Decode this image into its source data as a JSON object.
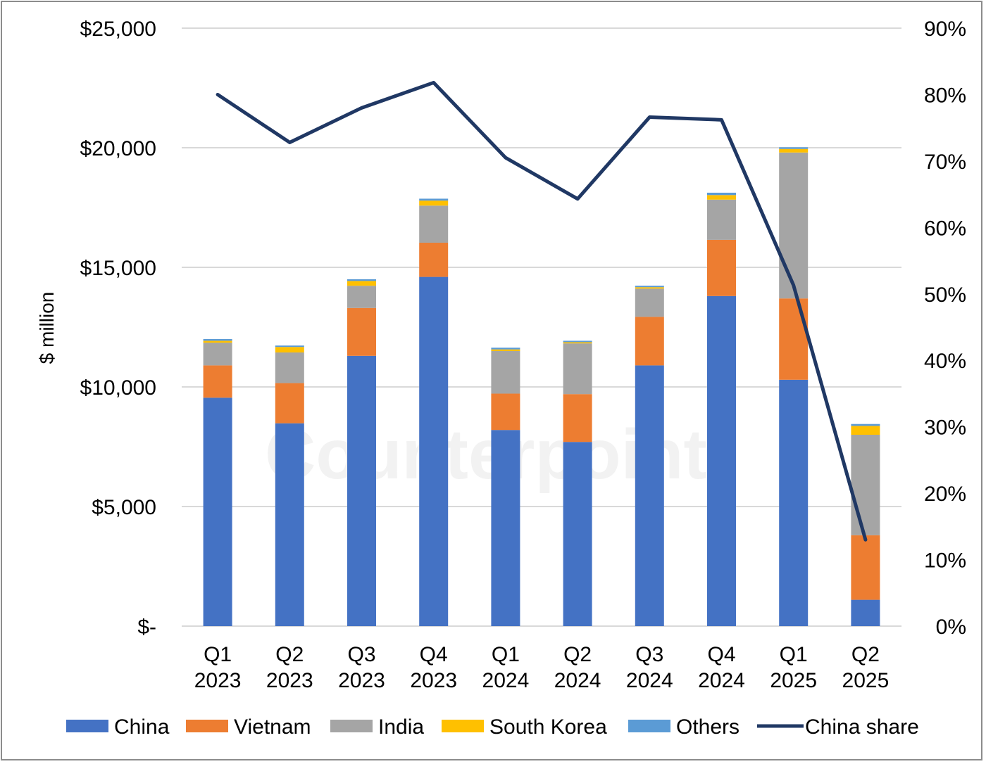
{
  "watermark": "Counterpoint",
  "chart_data": {
    "type": "bar",
    "stacked": true,
    "categories": [
      [
        "Q1",
        "2023"
      ],
      [
        "Q2",
        "2023"
      ],
      [
        "Q3",
        "2023"
      ],
      [
        "Q4",
        "2023"
      ],
      [
        "Q1",
        "2024"
      ],
      [
        "Q2",
        "2024"
      ],
      [
        "Q3",
        "2024"
      ],
      [
        "Q4",
        "2024"
      ],
      [
        "Q1",
        "2025"
      ],
      [
        "Q2",
        "2025"
      ]
    ],
    "ylabel": "$ million",
    "ylim": [
      0,
      25000
    ],
    "y_ticks": [
      "$-",
      "$5,000",
      "$10,000",
      "$15,000",
      "$20,000",
      "$25,000"
    ],
    "y2lim": [
      0,
      90
    ],
    "y2_ticks": [
      "0%",
      "10%",
      "20%",
      "30%",
      "40%",
      "50%",
      "60%",
      "70%",
      "80%",
      "90%"
    ],
    "grid": true,
    "legend_position": "bottom",
    "series": [
      {
        "name": "China",
        "color": "#4472C4",
        "values": [
          9550,
          8480,
          11300,
          14600,
          8200,
          7700,
          10900,
          13800,
          10300,
          1100
        ]
      },
      {
        "name": "Vietnam",
        "color": "#ED7D31",
        "values": [
          1350,
          1680,
          2000,
          1430,
          1520,
          2000,
          2030,
          2350,
          3400,
          2700
        ]
      },
      {
        "name": "India",
        "color": "#A5A5A5",
        "values": [
          950,
          1280,
          930,
          1550,
          1780,
          2120,
          1180,
          1680,
          6100,
          4200
        ]
      },
      {
        "name": "South Korea",
        "color": "#FFC000",
        "values": [
          80,
          230,
          200,
          210,
          70,
          50,
          60,
          190,
          150,
          370
        ]
      },
      {
        "name": "Others",
        "color": "#5B9BD5",
        "values": [
          70,
          60,
          70,
          80,
          70,
          60,
          60,
          100,
          70,
          80
        ]
      }
    ],
    "line_series": {
      "name": "China share",
      "color": "#203864",
      "axis": "right",
      "values": [
        80.0,
        72.8,
        78.0,
        81.8,
        70.5,
        64.3,
        76.6,
        76.2,
        51.3,
        13.0
      ]
    }
  }
}
